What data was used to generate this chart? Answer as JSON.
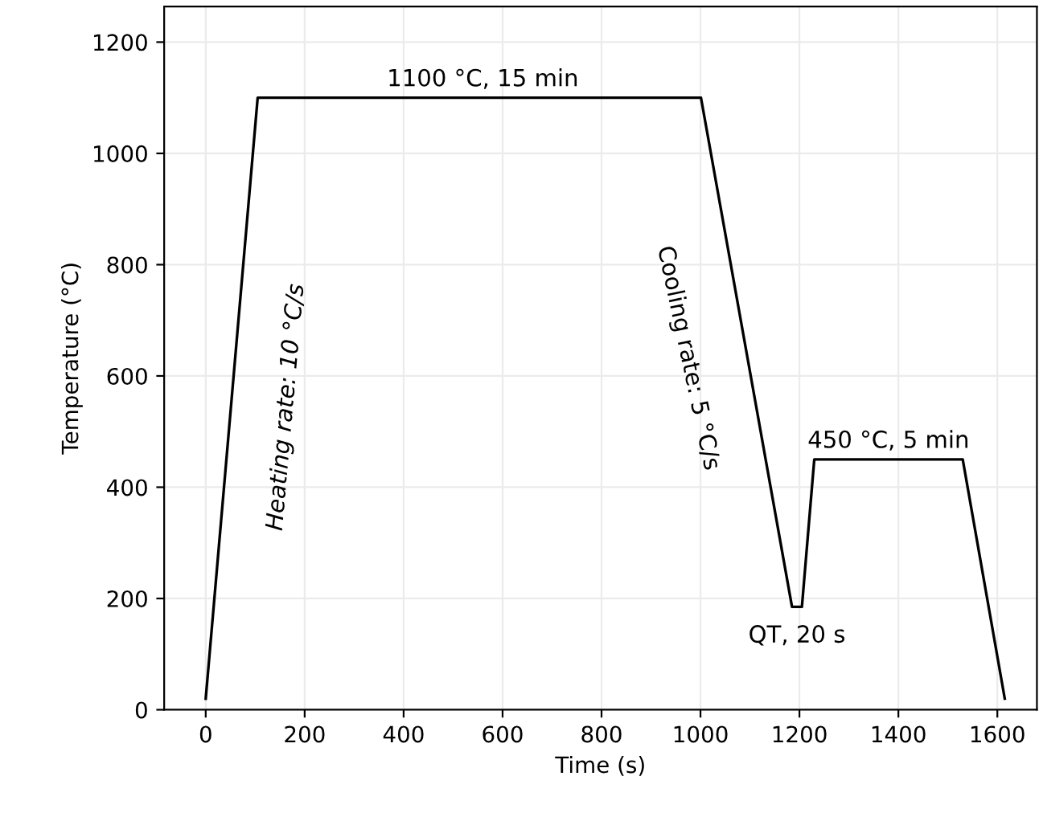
{
  "chart_data": {
    "type": "line",
    "xlabel": "Time (s)",
    "ylabel": "Temperature (°C)",
    "x": [
      0,
      105,
      1001,
      1185,
      1205,
      1230,
      1530,
      1615
    ],
    "series": [
      {
        "color": "#000000",
        "values": [
          20,
          1100,
          1100,
          185,
          185,
          450,
          450,
          20
        ]
      }
    ],
    "xlim": [
      -84,
      1680
    ],
    "ylim": [
      0,
      1264
    ],
    "xticks": [
      0,
      200,
      400,
      600,
      800,
      1000,
      1200,
      1400,
      1600
    ],
    "yticks": [
      0,
      200,
      400,
      600,
      800,
      1000,
      1200
    ],
    "grid": true,
    "marker": "none",
    "line_style": "solid",
    "annotations": [
      {
        "text": "1100 °C, 15 min",
        "x": 560,
        "y": 1100
      },
      "Heating rate: 10 °C/s",
      "Cooling rate: 5 °C/s",
      {
        "text": "QT, 20 s",
        "x": 1195,
        "y": 185
      },
      {
        "text": "450 °C, 5 min",
        "x": 1380,
        "y": 450
      }
    ]
  }
}
